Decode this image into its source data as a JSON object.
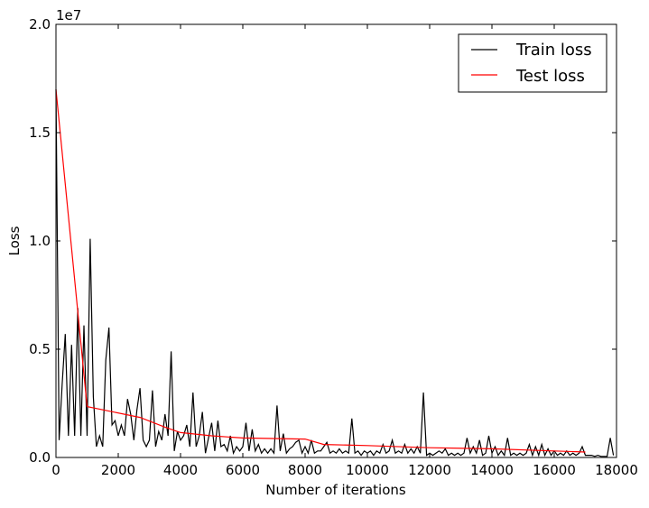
{
  "chart_data": {
    "type": "line",
    "title": "",
    "xlabel": "Number of iterations",
    "ylabel": "Loss",
    "y_multiplier_label": "1e7",
    "xlim": [
      0,
      18000
    ],
    "ylim": [
      0,
      2.0
    ],
    "x_ticks": [
      "0",
      "2000",
      "4000",
      "6000",
      "8000",
      "10000",
      "12000",
      "14000",
      "16000",
      "18000"
    ],
    "x_tick_values": [
      0,
      2000,
      4000,
      6000,
      8000,
      10000,
      12000,
      14000,
      16000,
      18000
    ],
    "y_ticks": [
      "0.0",
      "0.5",
      "1.0",
      "1.5",
      "2.0"
    ],
    "y_tick_values": [
      0,
      0.5,
      1.0,
      1.5,
      2.0
    ],
    "grid": false,
    "legend_position": "top-right",
    "series": [
      {
        "name": "Train loss",
        "color": "#000000",
        "x": [
          0,
          100,
          200,
          300,
          400,
          500,
          600,
          700,
          800,
          900,
          1000,
          1100,
          1200,
          1300,
          1400,
          1500,
          1600,
          1700,
          1800,
          1900,
          2000,
          2100,
          2200,
          2300,
          2400,
          2500,
          2600,
          2700,
          2800,
          2900,
          3000,
          3100,
          3200,
          3300,
          3400,
          3500,
          3600,
          3700,
          3800,
          3900,
          4000,
          4100,
          4200,
          4300,
          4400,
          4500,
          4600,
          4700,
          4800,
          4900,
          5000,
          5100,
          5200,
          5300,
          5400,
          5500,
          5600,
          5700,
          5800,
          5900,
          6000,
          6100,
          6200,
          6300,
          6400,
          6500,
          6600,
          6700,
          6800,
          6900,
          7000,
          7100,
          7200,
          7300,
          7400,
          7500,
          7600,
          7700,
          7800,
          7900,
          8000,
          8100,
          8200,
          8300,
          8400,
          8500,
          8600,
          8700,
          8800,
          8900,
          9000,
          9100,
          9200,
          9300,
          9400,
          9500,
          9600,
          9700,
          9800,
          9900,
          10000,
          10100,
          10200,
          10300,
          10400,
          10500,
          10600,
          10700,
          10800,
          10900,
          11000,
          11100,
          11200,
          11300,
          11400,
          11500,
          11600,
          11700,
          11800,
          11900,
          12000,
          12100,
          12200,
          12300,
          12400,
          12500,
          12600,
          12700,
          12800,
          12900,
          13000,
          13100,
          13200,
          13300,
          13400,
          13500,
          13600,
          13700,
          13800,
          13900,
          14000,
          14100,
          14200,
          14300,
          14400,
          14500,
          14600,
          14700,
          14800,
          14900,
          15000,
          15100,
          15200,
          15300,
          15400,
          15500,
          15600,
          15700,
          15800,
          15900,
          16000,
          16100,
          16200,
          16300,
          16400,
          16500,
          16600,
          16700,
          16800,
          16900,
          17000,
          17100,
          17200,
          17300,
          17400,
          17500,
          17600,
          17700,
          17800,
          17900
        ],
        "y": [
          1.7,
          0.08,
          0.34,
          0.57,
          0.1,
          0.52,
          0.1,
          0.69,
          0.1,
          0.61,
          0.1,
          1.01,
          0.28,
          0.05,
          0.1,
          0.05,
          0.45,
          0.6,
          0.15,
          0.17,
          0.1,
          0.15,
          0.1,
          0.27,
          0.2,
          0.08,
          0.22,
          0.32,
          0.08,
          0.05,
          0.08,
          0.31,
          0.05,
          0.12,
          0.08,
          0.2,
          0.1,
          0.49,
          0.03,
          0.12,
          0.08,
          0.1,
          0.15,
          0.05,
          0.3,
          0.05,
          0.1,
          0.21,
          0.02,
          0.09,
          0.16,
          0.03,
          0.17,
          0.05,
          0.06,
          0.03,
          0.1,
          0.02,
          0.05,
          0.03,
          0.05,
          0.16,
          0.03,
          0.13,
          0.03,
          0.06,
          0.02,
          0.04,
          0.02,
          0.04,
          0.02,
          0.24,
          0.03,
          0.11,
          0.02,
          0.04,
          0.05,
          0.07,
          0.08,
          0.02,
          0.05,
          0.02,
          0.08,
          0.02,
          0.03,
          0.03,
          0.05,
          0.07,
          0.02,
          0.03,
          0.02,
          0.04,
          0.02,
          0.03,
          0.02,
          0.18,
          0.02,
          0.03,
          0.01,
          0.03,
          0.02,
          0.03,
          0.01,
          0.03,
          0.02,
          0.06,
          0.02,
          0.03,
          0.08,
          0.02,
          0.03,
          0.02,
          0.06,
          0.02,
          0.04,
          0.02,
          0.05,
          0.02,
          0.3,
          0.01,
          0.02,
          0.01,
          0.02,
          0.03,
          0.02,
          0.04,
          0.01,
          0.02,
          0.01,
          0.02,
          0.01,
          0.02,
          0.09,
          0.02,
          0.05,
          0.02,
          0.08,
          0.01,
          0.02,
          0.1,
          0.02,
          0.05,
          0.01,
          0.03,
          0.01,
          0.09,
          0.01,
          0.02,
          0.01,
          0.02,
          0.01,
          0.02,
          0.06,
          0.01,
          0.05,
          0.01,
          0.06,
          0.01,
          0.04,
          0.01,
          0.03,
          0.01,
          0.02,
          0.01,
          0.03,
          0.01,
          0.02,
          0.01,
          0.02,
          0.05,
          0.01,
          0.01,
          0.01,
          0.005,
          0.01,
          0.005,
          0.005,
          0.005,
          0.09,
          0.01
        ]
      },
      {
        "name": "Test loss",
        "color": "#ff0000",
        "x": [
          0,
          1000,
          2700,
          3500,
          4000,
          5000,
          6000,
          8000,
          8600,
          10000,
          12000,
          14000,
          16000,
          17000
        ],
        "y": [
          1.7,
          0.235,
          0.185,
          0.14,
          0.115,
          0.1,
          0.09,
          0.085,
          0.06,
          0.055,
          0.045,
          0.04,
          0.03,
          0.025
        ]
      }
    ]
  }
}
